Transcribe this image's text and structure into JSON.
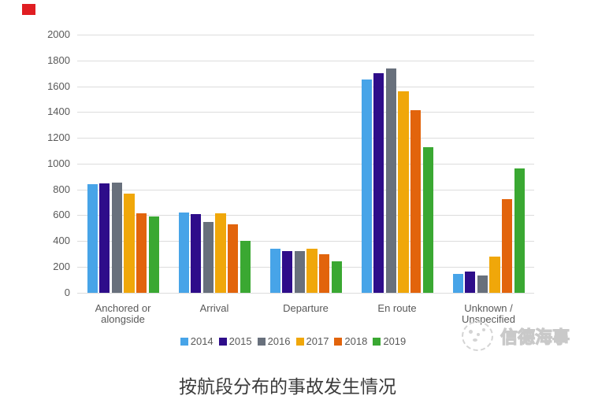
{
  "page": {
    "red_mark_color": "#e01d22"
  },
  "chart_data": {
    "type": "bar",
    "title": "按航段分布的事故发生情况",
    "categories": [
      "Anchored or\nalongside",
      "Arrival",
      "Departure",
      "En route",
      "Unknown /\nUnspecified"
    ],
    "series": [
      {
        "name": "2014",
        "color": "#47A4E8",
        "values": [
          840,
          620,
          342,
          1650,
          145
        ]
      },
      {
        "name": "2015",
        "color": "#2E0D8A",
        "values": [
          845,
          610,
          320,
          1700,
          165
        ]
      },
      {
        "name": "2016",
        "color": "#68707C",
        "values": [
          855,
          545,
          322,
          1738,
          130
        ]
      },
      {
        "name": "2017",
        "color": "#F0A70A",
        "values": [
          765,
          615,
          340,
          1560,
          280
        ]
      },
      {
        "name": "2018",
        "color": "#E2640C",
        "values": [
          615,
          530,
          298,
          1415,
          725
        ]
      },
      {
        "name": "2019",
        "color": "#3AA832",
        "values": [
          590,
          400,
          240,
          1130,
          963
        ]
      }
    ],
    "ylim": [
      0,
      2000
    ],
    "yticks": [
      0,
      200,
      400,
      600,
      800,
      1000,
      1200,
      1400,
      1600,
      1800,
      2000
    ],
    "grid": true,
    "legend_position": "bottom"
  },
  "watermark": {
    "text": "信德海事"
  }
}
